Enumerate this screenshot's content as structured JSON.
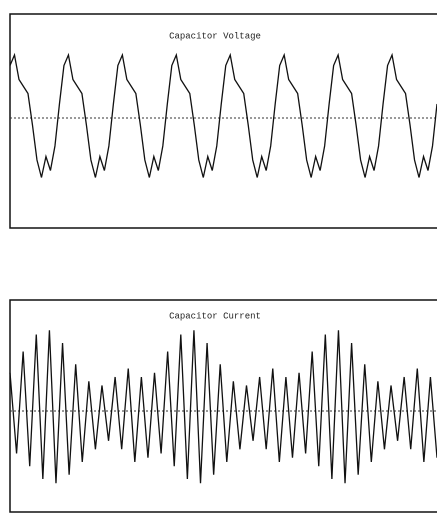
{
  "chart_data": [
    {
      "type": "line",
      "title": "Capacitor Voltage",
      "color": "#111",
      "xlim": [
        0,
        95
      ],
      "ylim": [
        -1,
        1
      ],
      "x": [
        0,
        1,
        2,
        3,
        4,
        5,
        6,
        7,
        8,
        9,
        10,
        11,
        12,
        13,
        14,
        15,
        16,
        17,
        18,
        19,
        20,
        21,
        22,
        23,
        24,
        25,
        26,
        27,
        28,
        29,
        30,
        31,
        32,
        33,
        34,
        35,
        36,
        37,
        38,
        39,
        40,
        41,
        42,
        43,
        44,
        45,
        46,
        47,
        48,
        49,
        50,
        51,
        52,
        53,
        54,
        55,
        56,
        57,
        58,
        59,
        60,
        61,
        62,
        63,
        64,
        65,
        66,
        67,
        68,
        69,
        70,
        71,
        72,
        73,
        74,
        75,
        76,
        77,
        78,
        79,
        80,
        81,
        82,
        83,
        84,
        85,
        86,
        87,
        88,
        89,
        90,
        91,
        92,
        93,
        94,
        95
      ],
      "series": [
        {
          "values": [
            0.75,
            0.9,
            0.55,
            0.45,
            0.35,
            -0.1,
            -0.6,
            -0.85,
            -0.55,
            -0.75,
            -0.4,
            0.2,
            0.75,
            0.9,
            0.55,
            0.45,
            0.35,
            -0.1,
            -0.6,
            -0.85,
            -0.55,
            -0.75,
            -0.4,
            0.2,
            0.75,
            0.9,
            0.55,
            0.45,
            0.35,
            -0.1,
            -0.6,
            -0.85,
            -0.55,
            -0.75,
            -0.4,
            0.2,
            0.75,
            0.9,
            0.55,
            0.45,
            0.35,
            -0.1,
            -0.6,
            -0.85,
            -0.55,
            -0.75,
            -0.4,
            0.2,
            0.75,
            0.9,
            0.55,
            0.45,
            0.35,
            -0.1,
            -0.6,
            -0.85,
            -0.55,
            -0.75,
            -0.4,
            0.2,
            0.75,
            0.9,
            0.55,
            0.45,
            0.35,
            -0.1,
            -0.6,
            -0.85,
            -0.55,
            -0.75,
            -0.4,
            0.2,
            0.75,
            0.9,
            0.55,
            0.45,
            0.35,
            -0.1,
            -0.6,
            -0.85,
            -0.55,
            -0.75,
            -0.4,
            0.2,
            0.75,
            0.9,
            0.55,
            0.45,
            0.35,
            -0.1,
            -0.6,
            -0.85,
            -0.55,
            -0.75,
            -0.4,
            0.2
          ]
        }
      ]
    },
    {
      "type": "line",
      "title": "Capacitor Current",
      "color": "#111",
      "xlim": [
        0,
        65
      ],
      "ylim": [
        -1,
        1
      ],
      "x": [
        0,
        1,
        2,
        3,
        4,
        5,
        6,
        7,
        8,
        9,
        10,
        11,
        12,
        13,
        14,
        15,
        16,
        17,
        18,
        19,
        20,
        21,
        22,
        23,
        24,
        25,
        26,
        27,
        28,
        29,
        30,
        31,
        32,
        33,
        34,
        35,
        36,
        37,
        38,
        39,
        40,
        41,
        42,
        43,
        44,
        45,
        46,
        47,
        48,
        49,
        50,
        51,
        52,
        53,
        54,
        55,
        56,
        57,
        58,
        59,
        60,
        61,
        62,
        63,
        64,
        65
      ],
      "series": [
        {
          "values": [
            0.45,
            -0.5,
            0.7,
            -0.65,
            0.9,
            -0.8,
            0.95,
            -0.85,
            0.8,
            -0.75,
            0.55,
            -0.6,
            0.35,
            -0.45,
            0.3,
            -0.35,
            0.4,
            -0.45,
            0.5,
            -0.6,
            0.4,
            -0.55,
            0.45,
            -0.5,
            0.7,
            -0.65,
            0.9,
            -0.8,
            0.95,
            -0.85,
            0.8,
            -0.75,
            0.55,
            -0.6,
            0.35,
            -0.45,
            0.3,
            -0.35,
            0.4,
            -0.45,
            0.5,
            -0.6,
            0.4,
            -0.55,
            0.45,
            -0.5,
            0.7,
            -0.65,
            0.9,
            -0.8,
            0.95,
            -0.85,
            0.8,
            -0.75,
            0.55,
            -0.6,
            0.35,
            -0.45,
            0.3,
            -0.35,
            0.4,
            -0.45,
            0.5,
            -0.6,
            0.4,
            -0.55
          ]
        }
      ]
    }
  ]
}
